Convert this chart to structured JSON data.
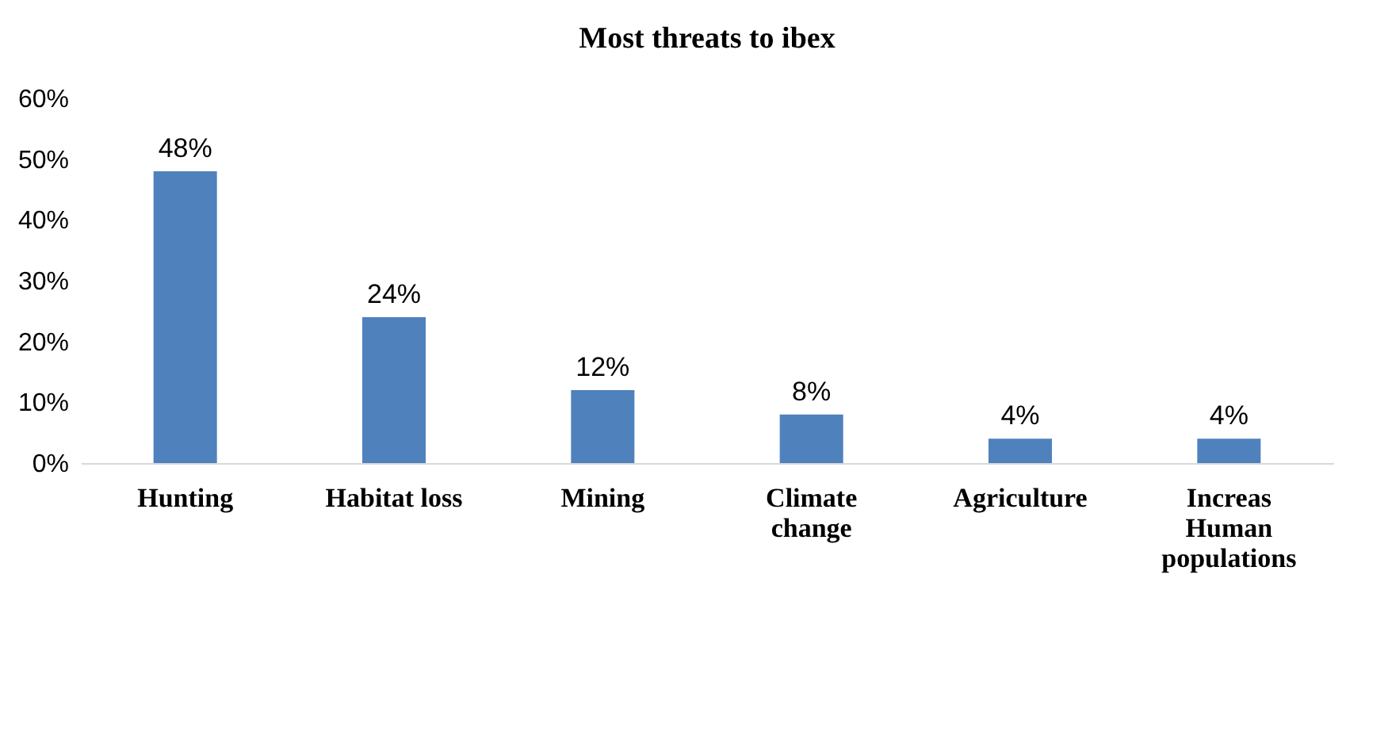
{
  "chart_data": {
    "type": "bar",
    "title": "Most threats to ibex",
    "categories": [
      "Hunting",
      "Habitat loss",
      "Mining",
      "Climate\nchange",
      "Agriculture",
      "Increas\nHuman\npopulations"
    ],
    "values": [
      48,
      24,
      12,
      8,
      4,
      4
    ],
    "value_labels": [
      "48%",
      "24%",
      "12%",
      "8%",
      "4%",
      "4%"
    ],
    "color": "#4f81bd",
    "ylim": [
      0,
      60
    ],
    "yticks": [
      {
        "value": 0,
        "label": "0%"
      },
      {
        "value": 10,
        "label": "10%"
      },
      {
        "value": 20,
        "label": "20%"
      },
      {
        "value": 30,
        "label": "30%"
      },
      {
        "value": 40,
        "label": "40%"
      },
      {
        "value": 50,
        "label": "50%"
      },
      {
        "value": 60,
        "label": "60%"
      }
    ],
    "grid": false
  }
}
